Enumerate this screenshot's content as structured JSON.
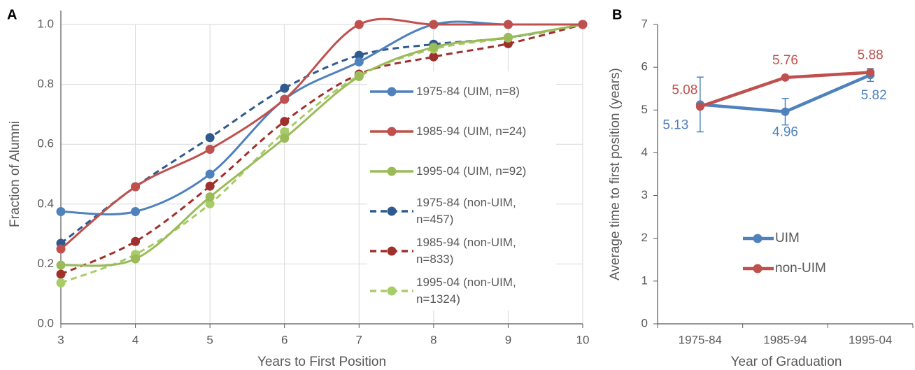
{
  "chart_data": [
    {
      "type": "line",
      "panel_label": "A",
      "x_label": "Years to First Position",
      "y_label": "Fraction of Alumni",
      "x": [
        3,
        4,
        5,
        6,
        7,
        8,
        9,
        10
      ],
      "xlim": [
        3,
        10
      ],
      "xticks": [
        3,
        4,
        5,
        6,
        7,
        8,
        9,
        10
      ],
      "ylim": [
        0,
        1
      ],
      "yticks": [
        {
          "value": 0,
          "label": "0.0"
        },
        0.2,
        0.4,
        0.6,
        0.8,
        {
          "value": 1,
          "label": "1.0"
        }
      ],
      "grid": true,
      "smooth": true,
      "legend": "center-right",
      "series": [
        {
          "name": "1975-84 (UIM, n=8)",
          "color": "#4f81bd",
          "line_style": "solid",
          "values": [
            0.375,
            0.375,
            0.5,
            0.75,
            0.875,
            1.0,
            1.0,
            1.0
          ]
        },
        {
          "name": "1985-94 (UIM, n=24)",
          "color": "#c0504d",
          "line_style": "solid",
          "values": [
            0.25,
            0.458,
            0.583,
            0.75,
            1.0,
            1.0,
            1.0,
            1.0
          ]
        },
        {
          "name": "1995-04 (UIM, n=92)",
          "color": "#9bbb59",
          "line_style": "solid",
          "values": [
            0.196,
            0.217,
            0.424,
            0.62,
            0.826,
            0.924,
            0.957,
            1.0
          ]
        },
        {
          "name": "1975-84 (non-UIM, n=457)",
          "color": "#2f5a8f",
          "line_style": "dashed",
          "values": [
            0.269,
            0.458,
            0.622,
            0.787,
            0.897,
            0.934,
            0.956,
            1.0
          ]
        },
        {
          "name": "1985-94 (non-UIM, n=833)",
          "color": "#a0302c",
          "line_style": "dashed",
          "values": [
            0.166,
            0.275,
            0.46,
            0.676,
            0.834,
            0.892,
            0.936,
            1.0
          ]
        },
        {
          "name": "1995-04 (non-UIM, n=1324)",
          "color": "#a8cc68",
          "line_style": "dashed",
          "values": [
            0.137,
            0.232,
            0.401,
            0.641,
            0.829,
            0.918,
            0.955,
            1.0
          ]
        }
      ]
    },
    {
      "type": "line",
      "panel_label": "B",
      "x_label": "Year of Graduation",
      "y_label": "Average time to first position (years)",
      "categories": [
        "1975-84",
        "1985-94",
        "1995-04"
      ],
      "ylim": [
        0,
        7
      ],
      "yticks": [
        0,
        1,
        2,
        3,
        4,
        5,
        6,
        7
      ],
      "grid": false,
      "legend": "center-left",
      "series": [
        {
          "name": "UIM",
          "color": "#4f81bd",
          "values": [
            5.13,
            4.96,
            5.82
          ],
          "errors": [
            0.64,
            0.31,
            0.15
          ]
        },
        {
          "name": "non-UIM",
          "color": "#c0504d",
          "values": [
            5.08,
            5.76,
            5.88
          ]
        }
      ]
    }
  ]
}
